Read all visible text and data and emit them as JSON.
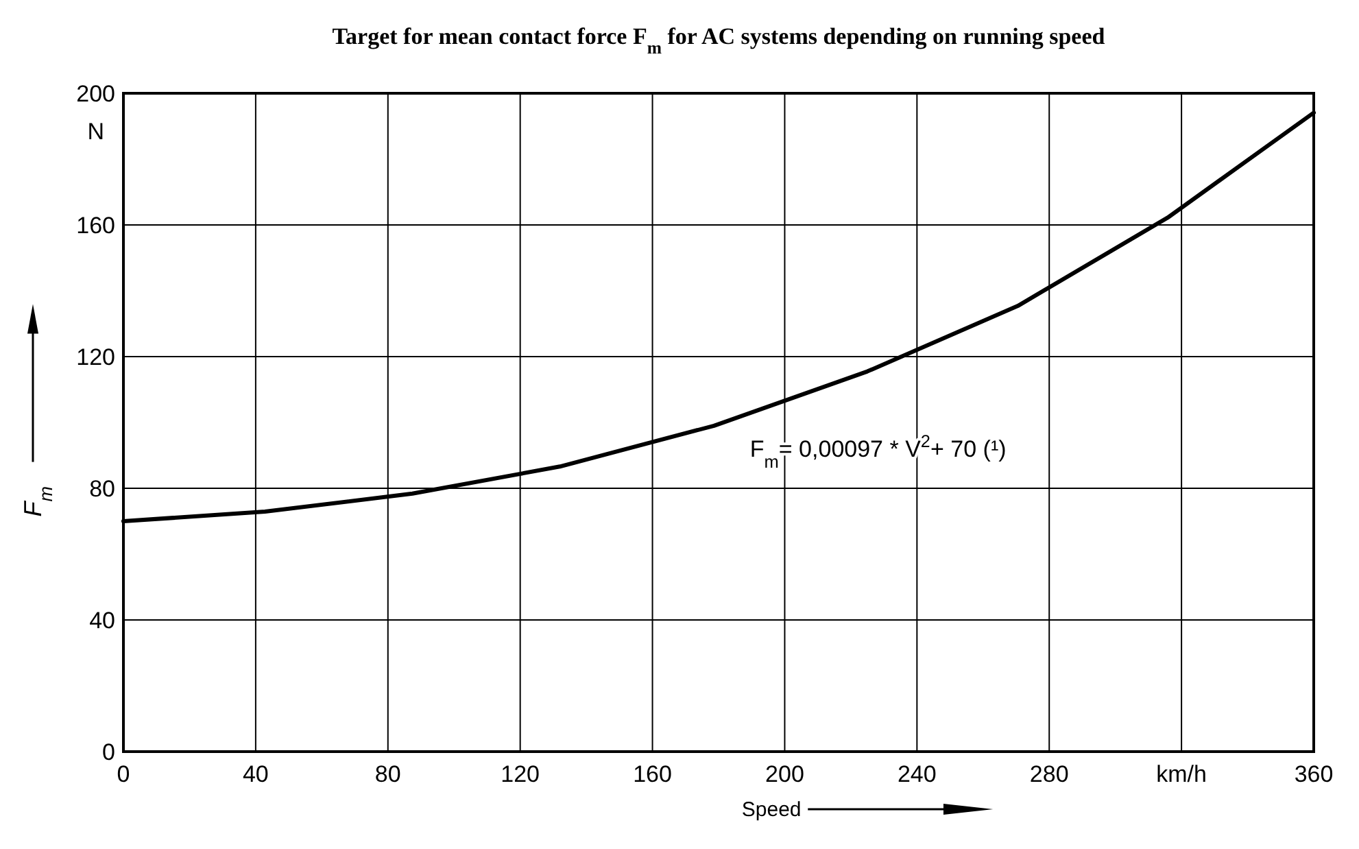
{
  "chart_data": {
    "type": "line",
    "title": "Target for mean contact force F$_{m}$ for AC systems depending on running speed",
    "xlabel": "Speed",
    "ylabel": "F$_{m}$",
    "x": [
      0,
      42.8,
      87.4,
      132,
      178.6,
      225,
      270.5,
      315.8,
      360
    ],
    "series": [
      {
        "color": "#000000",
        "values": [
          70,
          72.9,
          78.4,
          86.6,
          99,
          115.5,
          135.4,
          162.2,
          194.1
        ]
      }
    ],
    "xlim": [
      0,
      360
    ],
    "xticks": [
      0,
      40,
      80,
      120,
      160,
      200,
      240,
      280,
      {
        "value": 320,
        "label": "km/h"
      },
      360
    ],
    "ylim": [
      0,
      200
    ],
    "yticks": [
      0,
      40,
      80,
      120,
      160,
      200
    ],
    "grid": true,
    "marker": "none",
    "line_style": "solid",
    "annotations": [
      "F$_{m}$= 0,00097 * V$^{2}$+ 70 (¹)",
      "N"
    ]
  }
}
